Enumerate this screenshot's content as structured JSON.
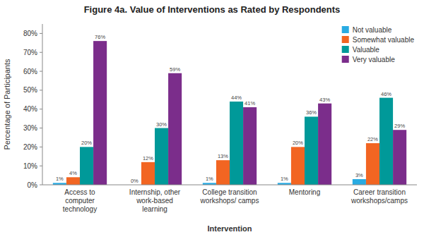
{
  "chart_data": {
    "type": "bar",
    "title": "Figure 4a. Value of Interventions as Rated by Respondents",
    "xlabel": "Intervention",
    "ylabel": "Percentage of Participants",
    "categories": [
      "Access to\ncomputer\ntechnology",
      "Internship, other\nwork-based\nlearning",
      "College transition\nworkshops/ camps",
      "Mentoring",
      "Career transition\nworkshops/camps"
    ],
    "series": [
      {
        "name": "Not valuable",
        "color": "#29ABE2",
        "values": [
          1,
          0,
          1,
          1,
          3
        ],
        "value_labels": [
          "1%",
          "0%",
          "1%",
          "1%",
          "3%"
        ]
      },
      {
        "name": "Somewhat valuable",
        "color": "#F26522",
        "values": [
          4,
          12,
          13,
          20,
          22
        ],
        "value_labels": [
          "4%",
          "12%",
          "13%",
          "20%",
          "22%"
        ]
      },
      {
        "name": "Valuable",
        "color": "#009999",
        "values": [
          20,
          30,
          44,
          36,
          46
        ],
        "value_labels": [
          "20%",
          "30%",
          "44%",
          "36%",
          "46%"
        ]
      },
      {
        "name": "Very valuable",
        "color": "#7B2D8B",
        "values": [
          76,
          59,
          41,
          43,
          29
        ],
        "value_labels": [
          "76%",
          "59%",
          "41%",
          "43%",
          "29%"
        ]
      }
    ],
    "ylim": [
      0,
      85
    ],
    "yticks": [
      {
        "value": 0,
        "label": "0%"
      },
      {
        "value": 10,
        "label": "10%"
      },
      {
        "value": 20,
        "label": "20%"
      },
      {
        "value": 30,
        "label": "30%"
      },
      {
        "value": 40,
        "label": "40%"
      },
      {
        "value": 50,
        "label": "50%"
      },
      {
        "value": 60,
        "label": "60%"
      },
      {
        "value": 70,
        "label": "70%"
      },
      {
        "value": 80,
        "label": "80%"
      }
    ],
    "grid": false,
    "legend": "upper right",
    "data_labels": true
  }
}
